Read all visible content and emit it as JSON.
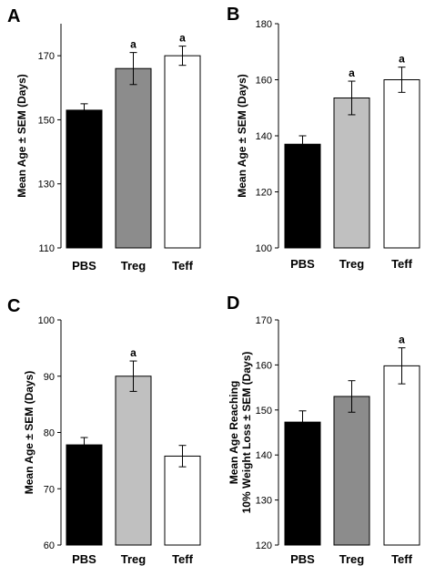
{
  "chart_data": [
    {
      "type": "bar",
      "panel": "A",
      "categories": [
        "PBS",
        "Treg",
        "Teff"
      ],
      "values": [
        153,
        166,
        170
      ],
      "errors": [
        2,
        5,
        3
      ],
      "significance": [
        "",
        "a",
        "a"
      ],
      "colors": [
        "#000000",
        "#8c8c8c",
        "#ffffff"
      ],
      "ylabel_lines": [
        "Mean Age ± SEM (Days)"
      ],
      "ylim": [
        110,
        180
      ],
      "yticks": [
        110,
        130,
        150,
        170
      ]
    },
    {
      "type": "bar",
      "panel": "B",
      "categories": [
        "PBS",
        "Treg",
        "Teff"
      ],
      "values": [
        137,
        153.5,
        160
      ],
      "errors": [
        3,
        6,
        4.5
      ],
      "significance": [
        "",
        "a",
        "a"
      ],
      "colors": [
        "#000000",
        "#c0c0c0",
        "#ffffff"
      ],
      "ylabel_lines": [
        "Mean Age ± SEM (Days)"
      ],
      "ylim": [
        100,
        180
      ],
      "yticks": [
        100,
        120,
        140,
        160,
        180
      ]
    },
    {
      "type": "bar",
      "panel": "C",
      "categories": [
        "PBS",
        "Treg",
        "Teff"
      ],
      "values": [
        77.8,
        90,
        75.8
      ],
      "errors": [
        1.3,
        2.7,
        1.9
      ],
      "significance": [
        "",
        "a",
        ""
      ],
      "colors": [
        "#000000",
        "#c0c0c0",
        "#ffffff"
      ],
      "ylabel_lines": [
        "Mean Age ± SEM (Days)"
      ],
      "ylim": [
        60,
        100
      ],
      "yticks": [
        60,
        70,
        80,
        90,
        100
      ]
    },
    {
      "type": "bar",
      "panel": "D",
      "categories": [
        "PBS",
        "Treg",
        "Teff"
      ],
      "values": [
        147.3,
        153,
        159.8
      ],
      "errors": [
        2.5,
        3.5,
        4
      ],
      "significance": [
        "",
        "",
        "a"
      ],
      "colors": [
        "#000000",
        "#8c8c8c",
        "#ffffff"
      ],
      "ylabel_lines": [
        "Mean Age Reaching",
        "10% Weight Loss ± SEM (Days)"
      ],
      "ylim": [
        120,
        170
      ],
      "yticks": [
        120,
        130,
        140,
        150,
        160,
        170
      ]
    }
  ]
}
